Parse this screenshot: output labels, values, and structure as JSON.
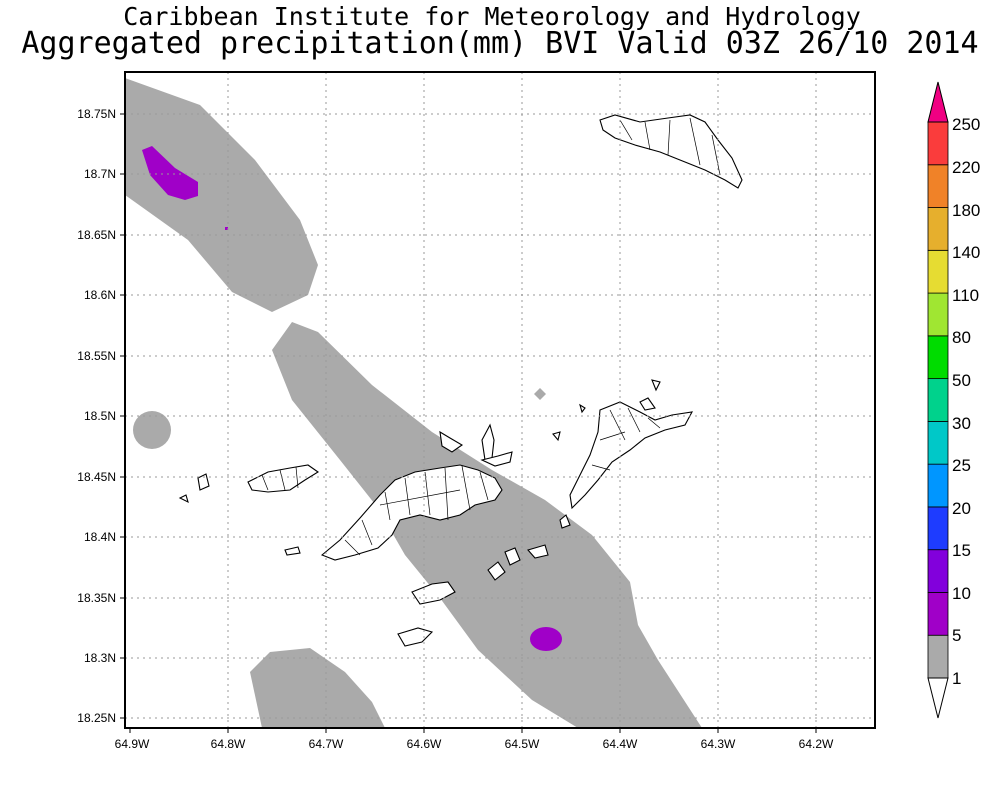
{
  "header": {
    "title": "Caribbean Institute for Meteorology and Hydrology",
    "subtitle": "Aggregated precipitation(mm) BVI Valid 03Z 26/10 2014"
  },
  "axes": {
    "x_ticks": [
      "64.9W",
      "64.8W",
      "64.7W",
      "64.6W",
      "64.5W",
      "64.4W",
      "64.3W",
      "64.2W"
    ],
    "y_ticks": [
      "18.75N",
      "18.7N",
      "18.65N",
      "18.6N",
      "18.55N",
      "18.5N",
      "18.45N",
      "18.4N",
      "18.35N",
      "18.3N",
      "18.25N"
    ],
    "lon_range": [
      -64.905,
      -64.13
    ],
    "lat_range": [
      18.24,
      18.785
    ],
    "grid": true
  },
  "colorbar": {
    "levels": [
      "1",
      "5",
      "10",
      "15",
      "20",
      "25",
      "30",
      "50",
      "80",
      "110",
      "140",
      "180",
      "220",
      "250"
    ],
    "colors": [
      "#aaaaaa",
      "#a000c8",
      "#8200dc",
      "#1e3cff",
      "#0096ff",
      "#00c8c8",
      "#00d28c",
      "#00dc00",
      "#a0e632",
      "#e6dc32",
      "#e6af2d",
      "#f08228",
      "#fa3c3c",
      "#f00082"
    ]
  },
  "precip_areas": [
    {
      "name": "northwest band",
      "class": "1-5"
    },
    {
      "name": "central band",
      "class": "1-5"
    },
    {
      "name": "southwest blob",
      "class": "1-5"
    },
    {
      "name": "west blob",
      "class": "1-5"
    },
    {
      "name": "northwest core",
      "class": "5-10"
    },
    {
      "name": "southeast core",
      "class": "5-10"
    }
  ]
}
